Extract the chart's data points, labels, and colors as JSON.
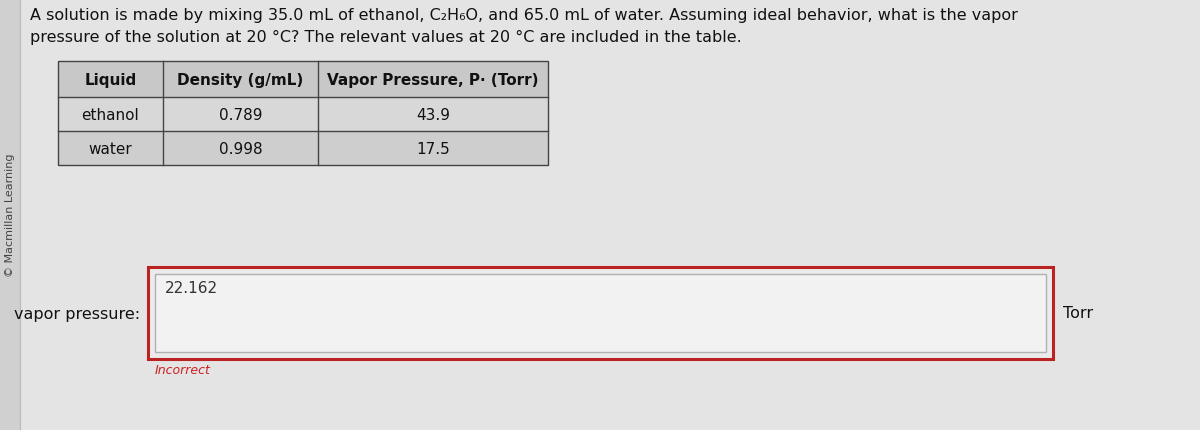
{
  "sidebar_text": "© Macmillan Learning",
  "question_line1": "A solution is made by mixing 35.0 mL of ethanol, C₂H₆O, and 65.0 mL of water. Assuming ideal behavior, what is the vapor",
  "question_line2": "pressure of the solution at 20 °C? The relevant values at 20 °C are included in the table.",
  "table_headers": [
    "Liquid",
    "Density (g/mL)",
    "Vapor Pressure, P· (Torr)"
  ],
  "table_rows": [
    [
      "ethanol",
      "0.789",
      "43.9"
    ],
    [
      "water",
      "0.998",
      "17.5"
    ]
  ],
  "label_vapor": "vapor pressure:",
  "input_value": "22.162",
  "unit_text": "Torr",
  "incorrect_text": "Incorrect",
  "bg_color": "#e4e4e4",
  "table_header_bg": "#c8c8c8",
  "table_row1_bg": "#d8d8d8",
  "table_row2_bg": "#cecece",
  "table_border_color": "#444444",
  "input_box_outer_color": "#bb2222",
  "input_text_color": "#333333",
  "incorrect_color": "#cc2222",
  "sidebar_bg": "#d0d0d0",
  "sidebar_border": "#bbbbbb",
  "question_fontsize": 11.5,
  "table_fontsize": 11,
  "label_fontsize": 11.5,
  "sidebar_fontsize": 8,
  "incorrect_fontsize": 9
}
